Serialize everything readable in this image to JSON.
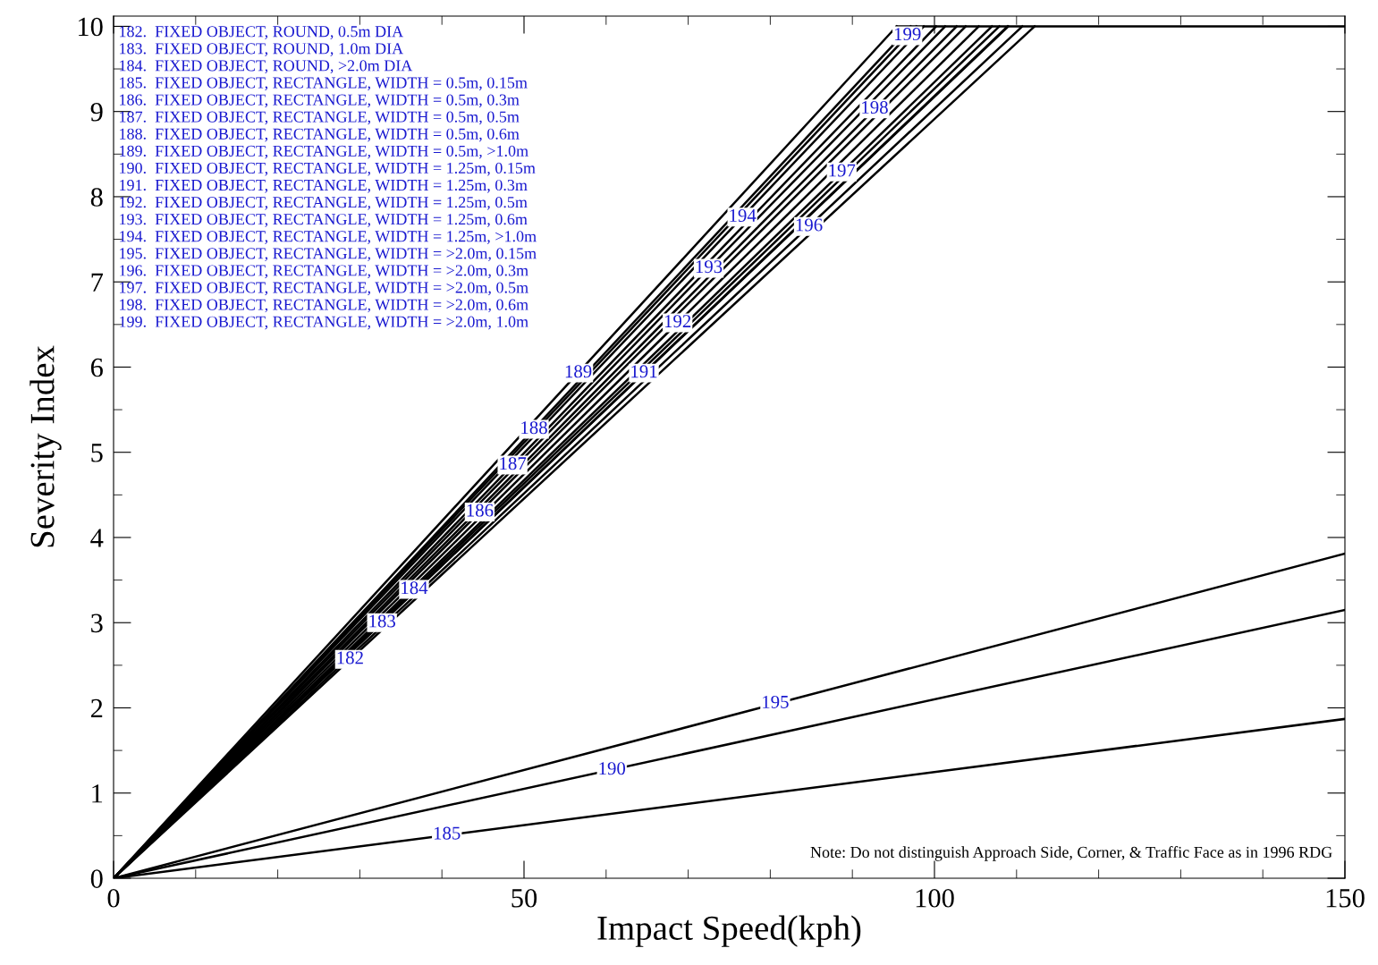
{
  "chart_data": {
    "type": "line",
    "xlabel": "Impact Speed(kph)",
    "ylabel": "Severity Index",
    "xlim": [
      0,
      150
    ],
    "ylim": [
      0,
      10.12
    ],
    "xticks": [
      0,
      50,
      100,
      150
    ],
    "yticks": [
      0,
      1,
      2,
      3,
      4,
      5,
      6,
      7,
      8,
      9,
      10
    ],
    "grid": false,
    "legend": false,
    "marker": "none",
    "line_style": "solid",
    "series": [
      {
        "color": "#000000",
        "x": [
          0,
          112.2
        ],
        "values": [
          0,
          10
        ]
      },
      {
        "color": "#000000",
        "x": [
          0,
          109.0
        ],
        "values": [
          0,
          10
        ]
      },
      {
        "color": "#000000",
        "x": [
          0,
          107.9
        ],
        "values": [
          0,
          10
        ]
      },
      {
        "color": "#000000",
        "x": [
          0,
          150
        ],
        "values": [
          0,
          1.87
        ]
      },
      {
        "color": "#000000",
        "x": [
          0,
          103.8
        ],
        "values": [
          0,
          10
        ]
      },
      {
        "color": "#000000",
        "x": [
          0,
          100.2
        ],
        "values": [
          0,
          10
        ]
      },
      {
        "color": "#000000",
        "x": [
          0,
          97.1
        ],
        "values": [
          0,
          10
        ]
      },
      {
        "color": "#000000",
        "x": [
          0,
          95.4
        ],
        "values": [
          0,
          10
        ]
      },
      {
        "color": "#000000",
        "x": [
          0,
          150
        ],
        "values": [
          0,
          3.15
        ]
      },
      {
        "color": "#000000",
        "x": [
          0,
          108.9
        ],
        "values": [
          0,
          10
        ]
      },
      {
        "color": "#000000",
        "x": [
          0,
          105.4
        ],
        "values": [
          0,
          10
        ]
      },
      {
        "color": "#000000",
        "x": [
          0,
          101.3
        ],
        "values": [
          0,
          10
        ]
      },
      {
        "color": "#000000",
        "x": [
          0,
          98.7
        ],
        "values": [
          0,
          10
        ]
      },
      {
        "color": "#000000",
        "x": [
          0,
          150
        ],
        "values": [
          0,
          3.81
        ]
      },
      {
        "color": "#000000",
        "x": [
          0,
          110.7
        ],
        "values": [
          0,
          10
        ]
      },
      {
        "color": "#000000",
        "x": [
          0,
          107.0
        ],
        "values": [
          0,
          10
        ]
      },
      {
        "color": "#000000",
        "x": [
          0,
          102.7
        ],
        "values": [
          0,
          10
        ]
      },
      {
        "color": "#000000",
        "x": [
          0,
          97.8
        ],
        "values": [
          0,
          10
        ]
      },
      {
        "color": "#000000",
        "x": [
          95.4,
          150
        ],
        "values": [
          10,
          10
        ]
      }
    ],
    "annotations": [
      "182.  FIXED OBJECT, ROUND, 0.5m DIA",
      "183.  FIXED OBJECT, ROUND, 1.0m DIA",
      "184.  FIXED OBJECT, ROUND, >2.0m DIA",
      "185.  FIXED OBJECT, RECTANGLE, WIDTH = 0.5m, 0.15m",
      "186.  FIXED OBJECT, RECTANGLE, WIDTH = 0.5m, 0.3m",
      "187.  FIXED OBJECT, RECTANGLE, WIDTH = 0.5m, 0.5m",
      "188.  FIXED OBJECT, RECTANGLE, WIDTH = 0.5m, 0.6m",
      "189.  FIXED OBJECT, RECTANGLE, WIDTH = 0.5m, >1.0m",
      "190.  FIXED OBJECT, RECTANGLE, WIDTH = 1.25m, 0.15m",
      "191.  FIXED OBJECT, RECTANGLE, WIDTH = 1.25m, 0.3m",
      "192.  FIXED OBJECT, RECTANGLE, WIDTH = 1.25m, 0.5m",
      "193.  FIXED OBJECT, RECTANGLE, WIDTH = 1.25m, 0.6m",
      "194.  FIXED OBJECT, RECTANGLE, WIDTH = 1.25m, >1.0m",
      "195.  FIXED OBJECT, RECTANGLE, WIDTH = >2.0m, 0.15m",
      "196.  FIXED OBJECT, RECTANGLE, WIDTH = >2.0m, 0.3m",
      "197.  FIXED OBJECT, RECTANGLE, WIDTH = >2.0m, 0.5m",
      "198.  FIXED OBJECT, RECTANGLE, WIDTH = >2.0m, 0.6m",
      "199.  FIXED OBJECT, RECTANGLE, WIDTH = >2.0m, 1.0m",
      {
        "text": "182",
        "x": 28.8,
        "y": 2.57
      },
      {
        "text": "183",
        "x": 32.7,
        "y": 3.0
      },
      {
        "text": "184",
        "x": 36.6,
        "y": 3.39
      },
      {
        "text": "185",
        "x": 40.6,
        "y": 0.51
      },
      {
        "text": "186",
        "x": 44.6,
        "y": 4.3
      },
      {
        "text": "187",
        "x": 48.6,
        "y": 4.85
      },
      {
        "text": "188",
        "x": 51.2,
        "y": 5.27
      },
      {
        "text": "189",
        "x": 56.6,
        "y": 5.93
      },
      {
        "text": "190",
        "x": 60.7,
        "y": 1.27
      },
      {
        "text": "191",
        "x": 64.6,
        "y": 5.93
      },
      {
        "text": "192",
        "x": 68.7,
        "y": 6.52
      },
      {
        "text": "193",
        "x": 72.5,
        "y": 7.16
      },
      {
        "text": "194",
        "x": 76.6,
        "y": 7.76
      },
      {
        "text": "195",
        "x": 80.6,
        "y": 2.05
      },
      {
        "text": "196",
        "x": 84.7,
        "y": 7.65
      },
      {
        "text": "197",
        "x": 88.7,
        "y": 8.29
      },
      {
        "text": "198",
        "x": 92.7,
        "y": 9.03
      },
      {
        "text": "199",
        "x": 96.7,
        "y": 9.89
      },
      "Note: Do not distinguish Approach Side, Corner, & Traffic Face as in 1996 RDG"
    ]
  }
}
